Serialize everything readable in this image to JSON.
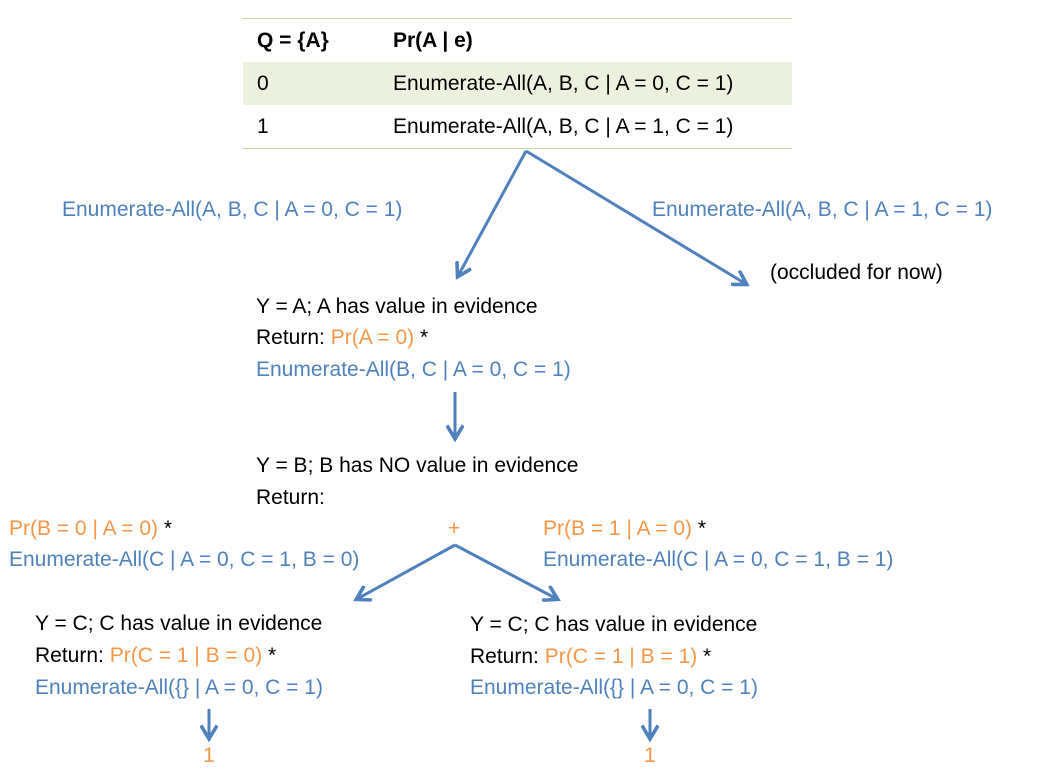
{
  "table": {
    "headers": [
      "Q = {A}",
      "Pr(A | e)"
    ],
    "rows": [
      {
        "value": "0",
        "expr": "Enumerate-All(A, B, C | A = 0, C = 1)"
      },
      {
        "value": "1",
        "expr": "Enumerate-All(A, B, C | A = 1, C = 1)"
      }
    ]
  },
  "branches": {
    "left_label": "Enumerate-All(A, B, C | A = 0, C = 1)",
    "right_label": "Enumerate-All(A, B, C | A = 1, C = 1)",
    "right_note": "(occluded for now)"
  },
  "nodeA": {
    "line1": "Y = A; A has value in evidence",
    "return_label": "Return: ",
    "prob": "Pr(A = 0)",
    "times": " *",
    "enum": "Enumerate-All(B, C | A = 0, C = 1)"
  },
  "nodeB": {
    "line1": "Y = B; B has NO value in evidence",
    "return_label": "Return:",
    "plus": "+",
    "left_prob": "Pr(B = 0 | A = 0)",
    "left_times": " *",
    "left_enum": "Enumerate-All(C | A = 0, C = 1, B = 0)",
    "right_prob": "Pr(B = 1 | A = 0)",
    "right_times": " *",
    "right_enum": "Enumerate-All(C | A = 0, C = 1, B = 1)"
  },
  "nodeC_left": {
    "line1": "Y = C; C has value in evidence",
    "return_label": "Return: ",
    "prob": "Pr(C = 1 | B = 0)",
    "times": " *",
    "enum": "Enumerate-All({} | A = 0, C = 1)",
    "result": "1"
  },
  "nodeC_right": {
    "line1": "Y = C; C has value in evidence",
    "return_label": "Return: ",
    "prob": "Pr(C = 1 | B = 1)",
    "times": " *",
    "enum": "Enumerate-All({} | A = 0, C = 1)",
    "result": "1"
  },
  "colors": {
    "blue": "#4f81bd",
    "orange": "#f79646",
    "table_border": "#c3d69b",
    "table_shade": "#ebf1de"
  }
}
